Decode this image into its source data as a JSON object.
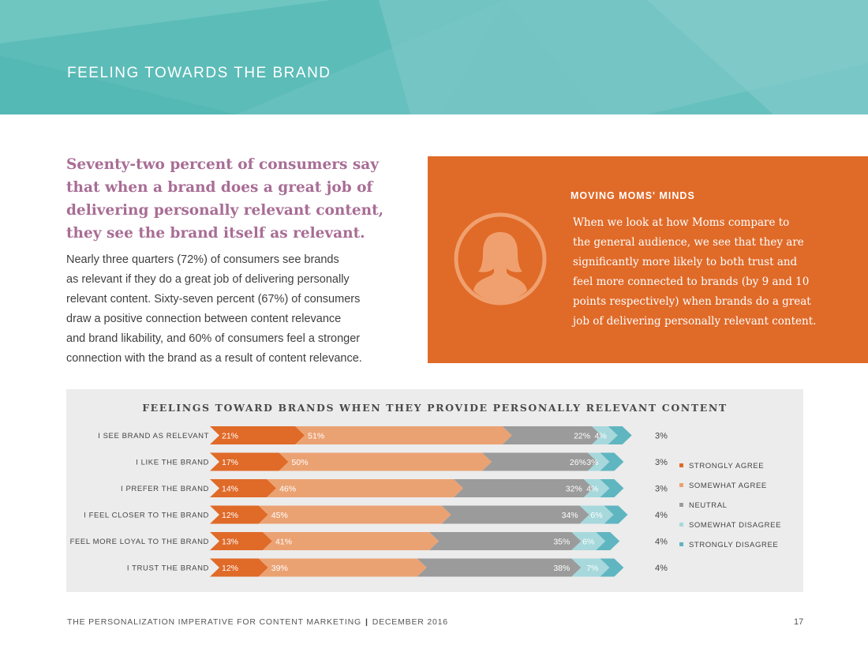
{
  "header": {
    "section_title": "FEELING TOWARDS THE BRAND"
  },
  "intro": {
    "headline": "Seventy-two percent of consumers say that when a brand does a great job of delivering personally relevant content, they see the brand itself as relevant.",
    "body_lines": [
      "Nearly three quarters (72%) of consumers see brands",
      "as relevant if they do a great job of delivering personally",
      "relevant content. Sixty-seven percent (67%) of consumers",
      "draw a positive connection between content relevance",
      "and brand likability, and 60% of consumers feel a stronger",
      "connection with the brand as a result of content relevance."
    ]
  },
  "callout": {
    "heading": "MOVING MOMS' MINDS",
    "icon": "mom-avatar-icon",
    "body_lines": [
      "When we look at how Moms compare to",
      "the general audience, we see that they are",
      "significantly more likely to both trust and",
      "feel more connected to brands (by 9 and 10",
      "points respectively) when brands do a great",
      "job of delivering personally relevant content."
    ]
  },
  "chart_data": {
    "type": "bar",
    "orientation": "horizontal",
    "stacked": true,
    "title": "FEELINGS TOWARD BRANDS WHEN THEY PROVIDE PERSONALLY RELEVANT CONTENT",
    "categories": [
      "I SEE BRAND AS RELEVANT",
      "I LIKE THE BRAND",
      "I PREFER THE BRAND",
      "I FEEL CLOSER TO THE BRAND",
      "I FEEL MORE LOYAL TO THE BRAND",
      "I TRUST THE BRAND"
    ],
    "series": [
      {
        "name": "STRONGLY AGREE",
        "color": "#e06a28",
        "values": [
          21,
          17,
          14,
          12,
          13,
          12
        ]
      },
      {
        "name": "SOMEWHAT AGREE",
        "color": "#eba273",
        "values": [
          51,
          50,
          46,
          45,
          41,
          39
        ]
      },
      {
        "name": "NEUTRAL",
        "color": "#9b9b9b",
        "values": [
          22,
          26,
          32,
          34,
          35,
          38
        ]
      },
      {
        "name": "SOMEWHAT DISAGREE",
        "color": "#a7d8dc",
        "values": [
          4,
          3,
          4,
          6,
          6,
          7
        ]
      },
      {
        "name": "STRONGLY DISAGREE",
        "color": "#5fb6c0",
        "values": [
          3,
          3,
          3,
          4,
          4,
          4
        ]
      }
    ],
    "value_suffix": "%",
    "legend_position": "right",
    "grid": false
  },
  "footer": {
    "publication": "THE PERSONALIZATION IMPERATIVE FOR CONTENT MARKETING",
    "date": "DECEMBER 2016",
    "separator": "|",
    "page_number": "17"
  }
}
